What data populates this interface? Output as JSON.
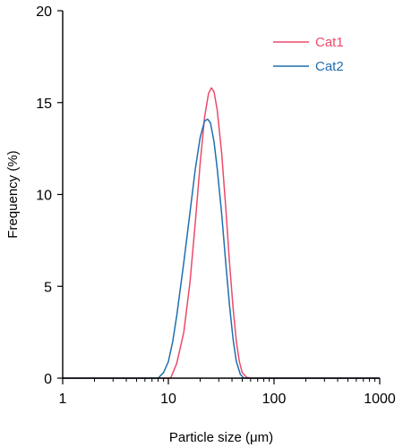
{
  "chart_data": {
    "type": "line",
    "xlabel": "Particle size (μm)",
    "ylabel": "Frequency (%)",
    "xscale": "log",
    "xlim": [
      1,
      1000
    ],
    "ylim": [
      0,
      20
    ],
    "xticks": [
      1,
      10,
      100,
      1000
    ],
    "yticks": [
      0,
      5,
      10,
      15,
      20
    ],
    "xtick_labels": [
      "1",
      "10",
      "100",
      "1000"
    ],
    "ytick_labels": [
      "0",
      "5",
      "10",
      "15",
      "20"
    ],
    "grid": false,
    "legend_position": "top-right",
    "series": [
      {
        "name": "Cat1",
        "color": "#ec4a6a",
        "x": [
          1,
          10.5,
          12,
          14,
          16,
          18,
          20,
          22,
          24,
          25.5,
          27,
          29,
          32,
          35,
          38,
          41,
          44,
          47,
          50,
          55,
          60,
          100,
          1000
        ],
        "y": [
          0,
          0,
          0.8,
          2.5,
          5.2,
          8.5,
          11.7,
          14.2,
          15.5,
          15.8,
          15.6,
          14.6,
          12.2,
          9.2,
          6.2,
          3.8,
          2.0,
          0.9,
          0.3,
          0.05,
          0,
          0,
          0
        ]
      },
      {
        "name": "Cat2",
        "color": "#1f6fb0",
        "x": [
          1,
          8,
          9,
          10,
          11,
          12,
          14,
          16,
          18,
          20,
          22,
          23.5,
          25,
          27,
          29,
          32,
          35,
          38,
          41,
          44,
          48,
          52,
          100,
          1000
        ],
        "y": [
          0,
          0,
          0.3,
          0.9,
          2.0,
          3.4,
          6.3,
          9.0,
          11.4,
          13.1,
          14.0,
          14.1,
          13.9,
          12.9,
          11.4,
          8.9,
          6.2,
          3.9,
          2.1,
          0.9,
          0.2,
          0,
          0,
          0
        ]
      }
    ]
  }
}
